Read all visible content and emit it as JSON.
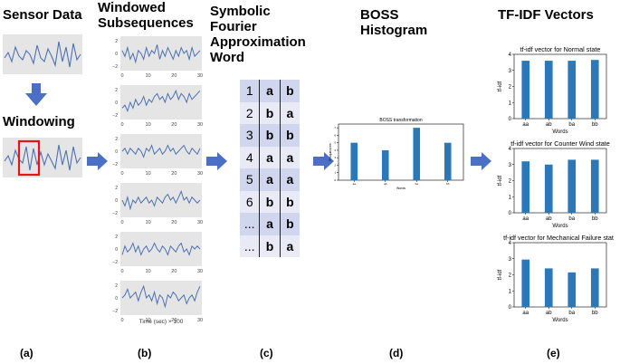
{
  "headers": {
    "sensor_data": "Sensor Data",
    "windowing": "Windowing",
    "windowed": "Windowed\nSubsequences",
    "sfa": "Symbolic\nFourier\nApproximation\nWord",
    "boss": "BOSS\nHistogram",
    "tfidf": "TF-IDF Vectors"
  },
  "panel_labels": [
    "(a)",
    "(b)",
    "(c)",
    "(d)",
    "(e)"
  ],
  "windowed_axis": {
    "yticks": [
      "2",
      "0",
      "−2"
    ],
    "xticks": [
      "0",
      "10",
      "20",
      "30"
    ],
    "xlabel": "Time (sec) × 100"
  },
  "sfa_rows": [
    {
      "idx": "1",
      "w1": "a",
      "w2": "b"
    },
    {
      "idx": "2",
      "w1": "b",
      "w2": "a"
    },
    {
      "idx": "3",
      "w1": "b",
      "w2": "b"
    },
    {
      "idx": "4",
      "w1": "a",
      "w2": "a"
    },
    {
      "idx": "5",
      "w1": "a",
      "w2": "a"
    },
    {
      "idx": "6",
      "w1": "b",
      "w2": "b"
    },
    {
      "idx": "...",
      "w1": "a",
      "w2": "b"
    },
    {
      "idx": "...",
      "w1": "b",
      "w2": "a"
    }
  ],
  "colors": {
    "bar": "#2a78b8",
    "line": "#4c72b0",
    "plot_bg": "#e5e5e5",
    "arrow": "#4a6fc4",
    "window_box": "#e8141b",
    "sfa_dark": "#cfd6ee",
    "sfa_light": "#e8ebf6"
  },
  "chart_data": [
    {
      "type": "bar",
      "title": "BOSS transformation",
      "xlabel": "Words",
      "ylabel": "Frequencies",
      "categories": [
        "aa",
        "ab",
        "ba",
        "bb"
      ],
      "values": [
        5,
        4,
        7,
        5
      ],
      "ylim": [
        0,
        7.5
      ],
      "yticks": [
        "0",
        "1",
        "2",
        "3",
        "4",
        "5",
        "6",
        "7"
      ]
    },
    {
      "type": "bar",
      "title": "tf-idf vector for Normal state",
      "xlabel": "Words",
      "ylabel": "tf-idf",
      "categories": [
        "aa",
        "ab",
        "ba",
        "bb"
      ],
      "values": [
        3.6,
        3.6,
        3.6,
        3.65
      ],
      "ylim": [
        0,
        4
      ],
      "yticks": [
        "0",
        "1",
        "2",
        "3",
        "4"
      ]
    },
    {
      "type": "bar",
      "title": "tf-idf vector for Counter Wind state",
      "xlabel": "Words",
      "ylabel": "tf-idf",
      "categories": [
        "aa",
        "ab",
        "ba",
        "bb"
      ],
      "values": [
        3.2,
        3.0,
        3.3,
        3.3
      ],
      "ylim": [
        0,
        4
      ],
      "yticks": [
        "0",
        "1",
        "2",
        "3",
        "4"
      ]
    },
    {
      "type": "bar",
      "title": "tf-idf vector for Mechanical Failure state",
      "xlabel": "Words",
      "ylabel": "tf-idf",
      "categories": [
        "aa",
        "ab",
        "ba",
        "bb"
      ],
      "values": [
        2.95,
        2.4,
        2.15,
        2.4
      ],
      "ylim": [
        0,
        4
      ],
      "yticks": [
        "0",
        "1",
        "2",
        "3",
        "4"
      ]
    }
  ]
}
